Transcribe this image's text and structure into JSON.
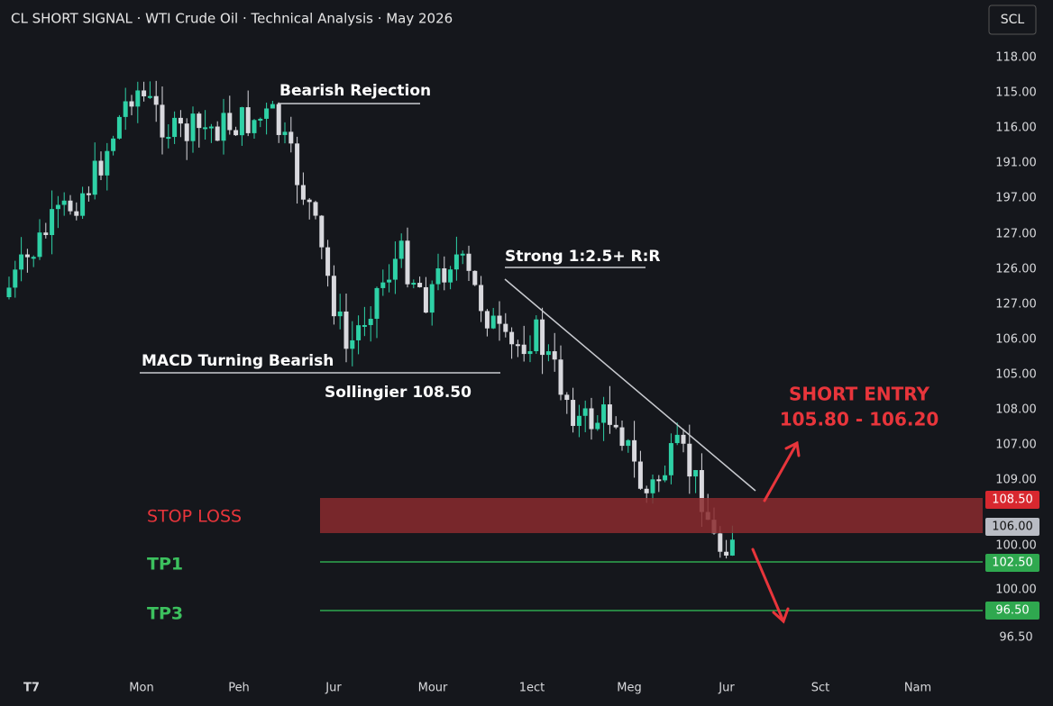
{
  "header": {
    "title": "CL SHORT SIGNAL · WTI Crude Oil · Technical Analysis · May 2026",
    "symbol_button": "SCL"
  },
  "y_axis_labels": [
    "118.00",
    "115.00",
    "116.00",
    "191.00",
    "197.00",
    "127.00",
    "126.00",
    "127.00",
    "106.00",
    "105.00",
    "108.00",
    "107.00",
    "109.00",
    "100.00",
    "100.00",
    "96.50"
  ],
  "price_tags": [
    "108.50",
    "106.00",
    "102.50",
    "96.50"
  ],
  "x_axis_labels": [
    "T7",
    "Mon",
    "Peh",
    "Jur",
    "Mour",
    "1ect",
    "Meg",
    "Jur",
    "Sct",
    "Nam"
  ],
  "annotations": {
    "bearish_rejection": "Bearish Rejection",
    "risk_reward": "Strong 1:2.5+ R:R",
    "macd": "MACD Turning Bearish",
    "bollinger": "Sollingier 108.50"
  },
  "entry": {
    "title": "SHORT ENTRY",
    "range": "105.80 - 106.20"
  },
  "levels": {
    "stop_loss": "STOP LOSS",
    "tp1": "TP1",
    "tp3": "TP3"
  }
}
